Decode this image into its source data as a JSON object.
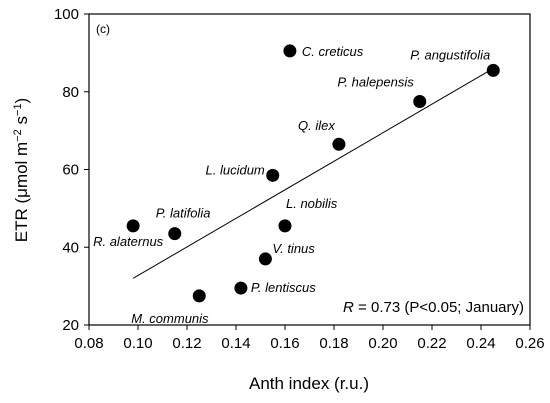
{
  "chart_data": {
    "type": "scatter",
    "panel_label": "(c)",
    "xlabel": "Anth index (r.u.)",
    "ylabel_main": "ETR (μmol m",
    "ylabel_sup1": "−2",
    "ylabel_mid": " s",
    "ylabel_sup2": "−1",
    "ylabel_end": ")",
    "xlim": [
      0.08,
      0.26
    ],
    "ylim": [
      20,
      100
    ],
    "x_ticks": [
      0.08,
      0.1,
      0.12,
      0.14,
      0.16,
      0.18,
      0.2,
      0.22,
      0.24,
      0.26
    ],
    "x_tick_labels": [
      "0.08",
      "0.10",
      "0.12",
      "0.14",
      "0.16",
      "0.18",
      "0.20",
      "0.22",
      "0.24",
      "0.26"
    ],
    "y_ticks": [
      20,
      40,
      60,
      80,
      100
    ],
    "y_tick_labels": [
      "20",
      "40",
      "60",
      "80",
      "100"
    ],
    "points": [
      {
        "label": "C. creticus",
        "x": 0.162,
        "y": 90.5
      },
      {
        "label": "P. angustifolia",
        "x": 0.245,
        "y": 85.5
      },
      {
        "label": "P. halepensis",
        "x": 0.215,
        "y": 77.5
      },
      {
        "label": "Q. ilex",
        "x": 0.182,
        "y": 66.5
      },
      {
        "label": "L. lucidum",
        "x": 0.155,
        "y": 58.5
      },
      {
        "label": "L. nobilis",
        "x": 0.16,
        "y": 45.5
      },
      {
        "label": "P. latifolia",
        "x": 0.115,
        "y": 43.5
      },
      {
        "label": "R. alaternus",
        "x": 0.098,
        "y": 45.5
      },
      {
        "label": "V. tinus",
        "x": 0.152,
        "y": 37
      },
      {
        "label": "P. lentiscus",
        "x": 0.142,
        "y": 29.5
      },
      {
        "label": "M. communis",
        "x": 0.125,
        "y": 27.5
      }
    ],
    "regression_line": {
      "x": [
        0.098,
        0.245
      ],
      "y": [
        32,
        86
      ]
    },
    "stat_R": "R",
    "stat_rest": " = 0.73 (P<0.05; January)",
    "grid": false
  }
}
